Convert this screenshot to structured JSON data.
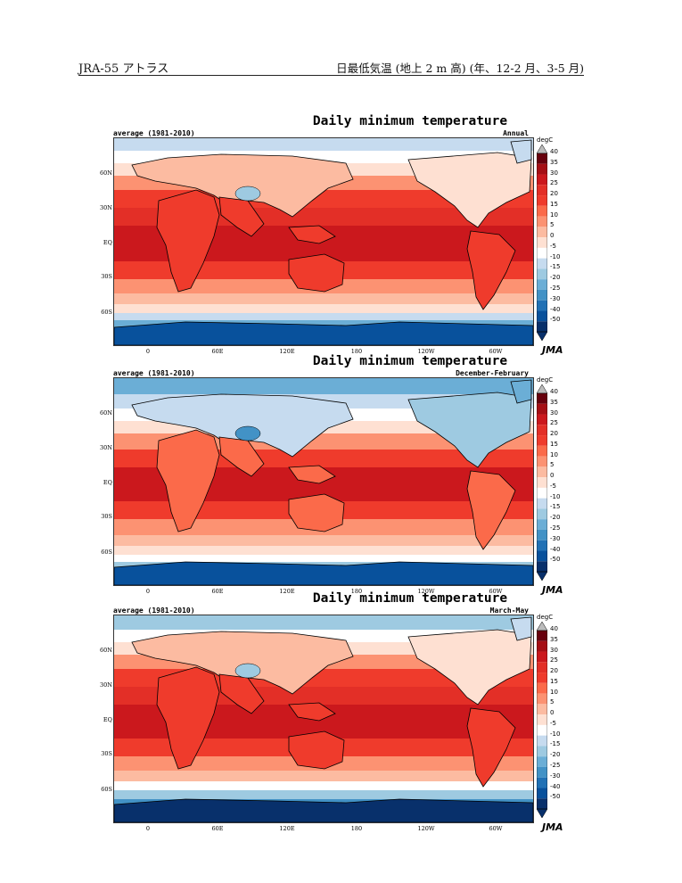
{
  "header": {
    "left": "JRA-55 アトラス",
    "right": "日最低気温 (地上 2 m 高) (年、12-2 月、3-5 月)"
  },
  "colors": {
    "levels": [
      "#08306b",
      "#08519c",
      "#2171b5",
      "#4292c6",
      "#6baed6",
      "#9ecae1",
      "#c6dbef",
      "#ffffff",
      "#fee0d2",
      "#fcbba1",
      "#fc9272",
      "#fb6a4a",
      "#ef3b2c",
      "#e32f27",
      "#cb181d",
      "#a50f15",
      "#67000d"
    ],
    "land_outline": "#000000"
  },
  "map_labels": {
    "lat": [
      "60N",
      "30N",
      "EQ",
      "30S",
      "60S"
    ],
    "lon": [
      "0",
      "60E",
      "120E",
      "180",
      "120W",
      "60W"
    ]
  },
  "colorbar": {
    "unit": "degC",
    "ticks": [
      "40",
      "35",
      "30",
      "25",
      "20",
      "15",
      "10",
      "5",
      "0",
      "-5",
      "-10",
      "-15",
      "-20",
      "-25",
      "-30",
      "-40",
      "-50"
    ]
  },
  "panels": [
    {
      "title": "Daily minimum temperature",
      "subtitle": "average (1981-2010)",
      "season": "Annual",
      "logo": "JMA"
    },
    {
      "title": "Daily minimum temperature",
      "subtitle": "average (1981-2010)",
      "season": "December-February",
      "logo": "JMA"
    },
    {
      "title": "Daily minimum temperature",
      "subtitle": "average (1981-2010)",
      "season": "March-May",
      "logo": "JMA"
    }
  ]
}
